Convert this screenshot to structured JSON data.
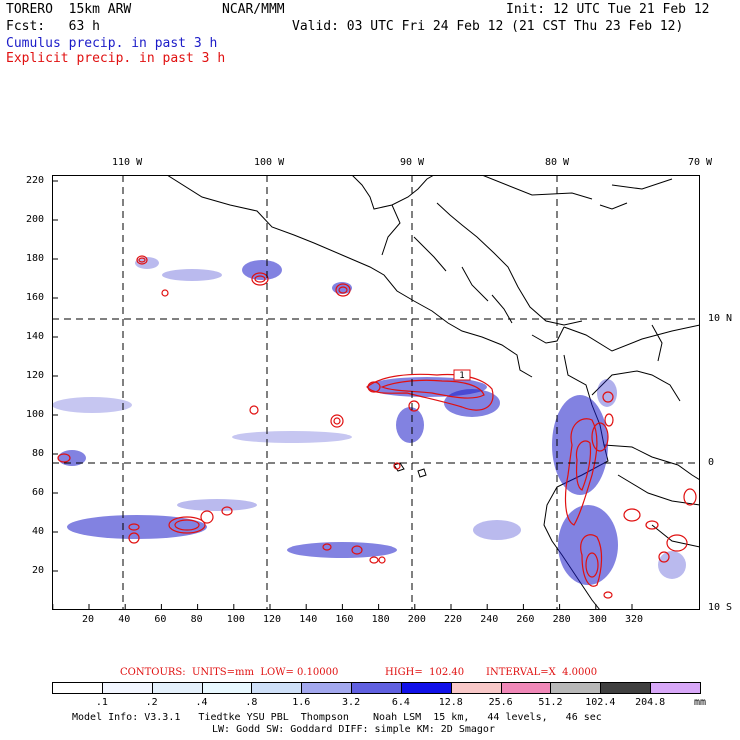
{
  "header": {
    "model": "TORERO  15km ARW",
    "org": "NCAR/MMM",
    "init": "Init: 12 UTC Tue 21 Feb 12",
    "fcst": "Fcst:   63 h",
    "valid": "Valid: 03 UTC Fri 24 Feb 12 (21 CST Thu 23 Feb 12)",
    "legend_cumulus": "Cumulus precip. in past 3 h",
    "legend_explicit": "Explicit precip. in past 3 h"
  },
  "colors": {
    "cumulus": "#1c1cc8",
    "explicit": "#e01010",
    "grid_lines": "#000000"
  },
  "map": {
    "lon_labels": [
      "110 W",
      "100 W",
      "90 W",
      "80 W",
      "70 W"
    ],
    "lat_labels": [
      "10 N",
      "0",
      "10 S"
    ],
    "x_ticks": [
      "20",
      "40",
      "60",
      "80",
      "100",
      "120",
      "140",
      "160",
      "180",
      "200",
      "220",
      "240",
      "260",
      "280",
      "300",
      "320"
    ],
    "y_ticks": [
      "20",
      "40",
      "60",
      "80",
      "100",
      "120",
      "140",
      "160",
      "180",
      "200",
      "220"
    ],
    "box_label": "1"
  },
  "contours_line": {
    "contours": "CONTOURS:  UNITS=mm  LOW= 0.10000",
    "high": "HIGH=  102.40",
    "interval": "INTERVAL=X  4.0000"
  },
  "colorbar": {
    "labels": [
      ".1",
      ".2",
      ".4",
      ".8",
      "1.6",
      "3.2",
      "6.4",
      "12.8",
      "25.6",
      "51.2",
      "102.4",
      "204.8"
    ],
    "unit": "mm",
    "colors": [
      "#ffffff",
      "#f2f6ff",
      "#e4f0fb",
      "#e8f8ff",
      "#cfe0f8",
      "#a3a8ee",
      "#6060e0",
      "#1010e8",
      "#f8c8c8",
      "#f088b8",
      "#b8b8b8",
      "#404040",
      "#d8a8f8"
    ]
  },
  "footer": {
    "line1": "Model Info: V3.3.1   Tiedtke YSU PBL  Thompson    Noah LSM  15 km,   44 levels,   46 sec",
    "line2": "LW: Godd SW: Goddard DIFF: simple KM: 2D Smagor"
  }
}
